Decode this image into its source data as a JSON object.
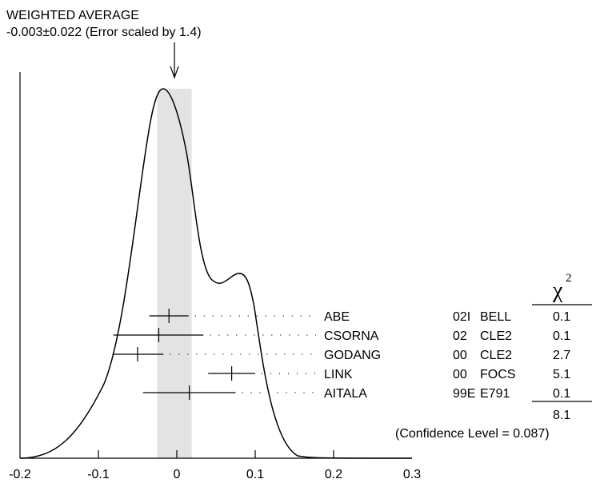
{
  "header": {
    "title": "WEIGHTED AVERAGE",
    "value": "-0.003±0.022 (Error scaled by 1.4)"
  },
  "chi2_header": {
    "symbol": "χ",
    "exponent": "2"
  },
  "chart_data": {
    "type": "ideogram",
    "xlim": [
      -0.2,
      0.3
    ],
    "x_ticks": [
      "-0.2",
      "-0.1",
      "0",
      "0.1",
      "0.2",
      "0.3"
    ],
    "x_tick_values": [
      -0.2,
      -0.1,
      0,
      0.1,
      0.2,
      0.3
    ],
    "weighted_average": -0.003,
    "band": [
      -0.025,
      0.019
    ],
    "measurements": [
      {
        "name": "ABE",
        "year": "02I",
        "experiment": "BELL",
        "value": -0.01,
        "lo": -0.035,
        "hi": 0.015,
        "chi2": "0.1"
      },
      {
        "name": "CSORNA",
        "year": "02",
        "experiment": "CLE2",
        "value": -0.023,
        "lo": -0.081,
        "hi": 0.034,
        "chi2": "0.1"
      },
      {
        "name": "GODANG",
        "year": "00",
        "experiment": "CLE2",
        "value": -0.05,
        "lo": -0.082,
        "hi": -0.017,
        "chi2": "2.7"
      },
      {
        "name": "LINK",
        "year": "00",
        "experiment": "FOCS",
        "value": 0.07,
        "lo": 0.04,
        "hi": 0.1,
        "chi2": "5.1"
      },
      {
        "name": "AITALA",
        "year": "99E",
        "experiment": "E791",
        "value": 0.016,
        "lo": -0.043,
        "hi": 0.075,
        "chi2": "0.1"
      }
    ],
    "chi2_total": "8.1",
    "confidence_level": "(Confidence Level = 0.087)"
  }
}
